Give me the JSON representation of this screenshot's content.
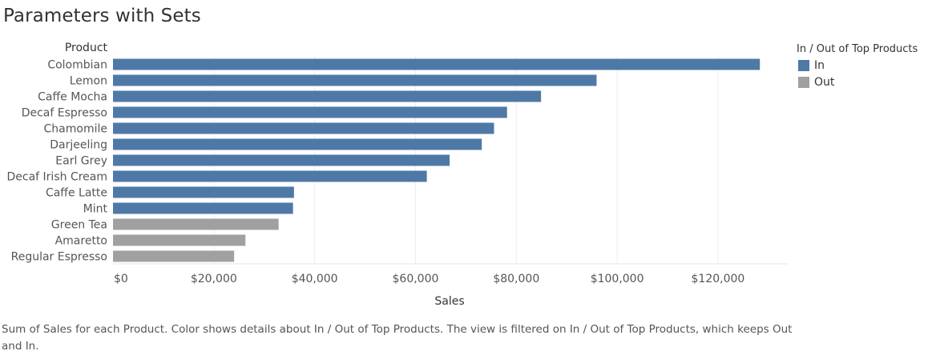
{
  "title": "Parameters with Sets",
  "legend": {
    "title": "In / Out of Top Products",
    "items": [
      {
        "label": "In",
        "color": "#4e79a7"
      },
      {
        "label": "Out",
        "color": "#a0a0a0"
      }
    ]
  },
  "caption": "Sum of Sales for each Product.  Color shows details about In / Out of Top Products. The view is filtered on In / Out of Top Products, which keeps Out and In.",
  "chart_data": {
    "type": "bar",
    "orientation": "horizontal",
    "row_header": "Product",
    "xlabel": "Sales",
    "xlim": [
      0,
      134000
    ],
    "x_ticks": [
      0,
      20000,
      40000,
      60000,
      80000,
      100000,
      120000
    ],
    "x_tick_labels": [
      "$0",
      "$20,000",
      "$40,000",
      "$60,000",
      "$80,000",
      "$100,000",
      "$120,000"
    ],
    "grid": "vertical",
    "categories": [
      "Colombian",
      "Lemon",
      "Caffe Mocha",
      "Decaf Espresso",
      "Chamomile",
      "Darjeeling",
      "Earl Grey",
      "Decaf Irish Cream",
      "Caffe Latte",
      "Mint",
      "Green Tea",
      "Amaretto",
      "Regular Espresso"
    ],
    "values": [
      128311,
      95926,
      84904,
      78162,
      75578,
      73151,
      66772,
      62248,
      35899,
      35710,
      32850,
      26269,
      24031
    ],
    "groups": [
      "In",
      "In",
      "In",
      "In",
      "In",
      "In",
      "In",
      "In",
      "In",
      "In",
      "Out",
      "Out",
      "Out"
    ]
  }
}
